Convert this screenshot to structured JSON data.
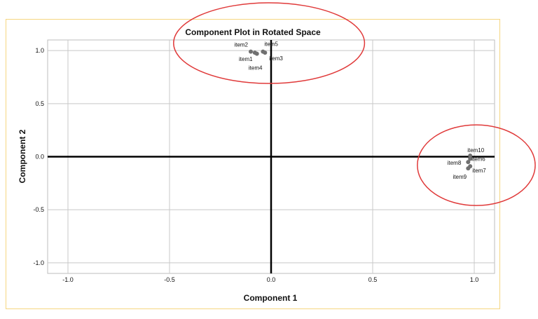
{
  "chart_data": {
    "type": "scatter",
    "title": "Component Plot in Rotated Space",
    "xlabel": "Component 1",
    "ylabel": "Component 2",
    "xlim": [
      -1.1,
      1.1
    ],
    "ylim": [
      -1.1,
      1.1
    ],
    "x_ticks": [
      -1.0,
      -0.5,
      0.0,
      0.5,
      1.0
    ],
    "y_ticks": [
      -1.0,
      -0.5,
      0.0,
      0.5,
      1.0
    ],
    "x_tick_labels": [
      "-1.0",
      "-0.5",
      "0.0",
      "0.5",
      "1.0"
    ],
    "y_tick_labels": [
      "-1.0",
      "-0.5",
      "0.0",
      "0.5",
      "1.0"
    ],
    "grid": true,
    "points": [
      {
        "label": "item1",
        "x": -0.08,
        "y": 0.98
      },
      {
        "label": "item2",
        "x": -0.1,
        "y": 0.99
      },
      {
        "label": "item3",
        "x": -0.03,
        "y": 0.98
      },
      {
        "label": "item4",
        "x": -0.07,
        "y": 0.97
      },
      {
        "label": "item5",
        "x": -0.04,
        "y": 0.99
      },
      {
        "label": "item6",
        "x": 0.98,
        "y": -0.02
      },
      {
        "label": "item7",
        "x": 0.98,
        "y": -0.09
      },
      {
        "label": "item8",
        "x": 0.97,
        "y": -0.05
      },
      {
        "label": "item9",
        "x": 0.97,
        "y": -0.11
      },
      {
        "label": "item10",
        "x": 0.98,
        "y": 0.01
      }
    ],
    "annotations": [
      {
        "shape": "ellipse",
        "cx": -0.01,
        "cy": 1.07,
        "rx": 0.47,
        "ry": 0.38
      },
      {
        "shape": "ellipse",
        "cx": 1.01,
        "cy": -0.08,
        "rx": 0.29,
        "ry": 0.38
      }
    ],
    "colors": {
      "point": "#707070",
      "annotation": "#e03a3a",
      "grid": "#c8c8c8",
      "axis": "#000000"
    }
  }
}
